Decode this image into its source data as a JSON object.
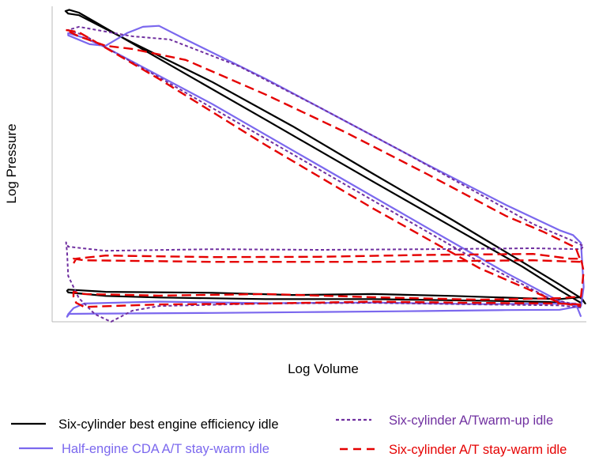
{
  "chart_data": {
    "type": "line",
    "title": "",
    "xlabel": "Log Volume",
    "ylabel": "Log Pressure",
    "xlim": [
      0,
      1
    ],
    "ylim": [
      0,
      1
    ],
    "grid": false,
    "ticks_shown": false,
    "legend_position": "bottom",
    "series": [
      {
        "name": "Six-cylinder best engine efficiency idle",
        "color": "#000000",
        "dash": "solid",
        "points": [
          [
            0.987,
            0.053
          ],
          [
            0.93,
            0.063
          ],
          [
            0.8,
            0.067
          ],
          [
            0.6,
            0.072
          ],
          [
            0.4,
            0.072
          ],
          [
            0.2,
            0.077
          ],
          [
            0.1,
            0.082
          ],
          [
            0.03,
            0.093
          ],
          [
            0.028,
            0.098
          ],
          [
            0.03,
            0.102
          ],
          [
            0.1,
            0.095
          ],
          [
            0.3,
            0.092
          ],
          [
            0.45,
            0.085
          ],
          [
            0.6,
            0.088
          ],
          [
            0.75,
            0.082
          ],
          [
            0.88,
            0.075
          ],
          [
            0.95,
            0.072
          ],
          [
            0.99,
            0.078
          ],
          [
            0.998,
            0.058
          ],
          [
            0.99,
            0.075
          ],
          [
            0.95,
            0.118
          ],
          [
            0.87,
            0.2
          ],
          [
            0.75,
            0.322
          ],
          [
            0.6,
            0.47
          ],
          [
            0.45,
            0.62
          ],
          [
            0.3,
            0.76
          ],
          [
            0.15,
            0.885
          ],
          [
            0.05,
            0.972
          ],
          [
            0.03,
            0.977
          ],
          [
            0.025,
            0.985
          ],
          [
            0.032,
            0.989
          ],
          [
            0.05,
            0.98
          ],
          [
            0.2,
            0.834
          ],
          [
            0.4,
            0.64
          ],
          [
            0.6,
            0.445
          ],
          [
            0.75,
            0.3
          ],
          [
            0.88,
            0.175
          ],
          [
            0.95,
            0.1
          ],
          [
            0.99,
            0.06
          ]
        ]
      },
      {
        "name": "Half-engine CDA A/T stay-warm idle",
        "color": "#7b68ee",
        "dash": "solid",
        "points": [
          [
            0.99,
            0.016
          ],
          [
            0.98,
            0.058
          ],
          [
            0.8,
            0.056
          ],
          [
            0.6,
            0.061
          ],
          [
            0.4,
            0.059
          ],
          [
            0.2,
            0.064
          ],
          [
            0.06,
            0.058
          ],
          [
            0.04,
            0.043
          ],
          [
            0.03,
            0.024
          ],
          [
            0.028,
            0.016
          ],
          [
            0.032,
            0.025
          ],
          [
            0.1,
            0.026
          ],
          [
            0.3,
            0.028
          ],
          [
            0.5,
            0.031
          ],
          [
            0.7,
            0.034
          ],
          [
            0.85,
            0.037
          ],
          [
            0.95,
            0.038
          ],
          [
            0.99,
            0.05
          ],
          [
            0.995,
            0.11
          ],
          [
            0.99,
            0.25
          ],
          [
            0.975,
            0.275
          ],
          [
            0.95,
            0.29
          ],
          [
            0.85,
            0.37
          ],
          [
            0.7,
            0.5
          ],
          [
            0.55,
            0.635
          ],
          [
            0.4,
            0.77
          ],
          [
            0.25,
            0.895
          ],
          [
            0.2,
            0.938
          ],
          [
            0.17,
            0.935
          ],
          [
            0.14,
            0.915
          ],
          [
            0.1,
            0.875
          ],
          [
            0.07,
            0.88
          ],
          [
            0.03,
            0.908
          ],
          [
            0.03,
            0.915
          ],
          [
            0.06,
            0.9
          ],
          [
            0.1,
            0.87
          ],
          [
            0.3,
            0.69
          ],
          [
            0.5,
            0.495
          ],
          [
            0.7,
            0.3
          ],
          [
            0.85,
            0.155
          ],
          [
            0.95,
            0.065
          ],
          [
            0.99,
            0.045
          ]
        ]
      },
      {
        "name": "Six-cylinder A/Twarm-up idle",
        "color": "#7030a0",
        "dash": "dotted",
        "points": [
          [
            0.99,
            0.045
          ],
          [
            0.95,
            0.052
          ],
          [
            0.8,
            0.055
          ],
          [
            0.6,
            0.06
          ],
          [
            0.4,
            0.058
          ],
          [
            0.2,
            0.05
          ],
          [
            0.15,
            0.035
          ],
          [
            0.11,
            0.0
          ],
          [
            0.08,
            0.024
          ],
          [
            0.05,
            0.075
          ],
          [
            0.03,
            0.145
          ],
          [
            0.028,
            0.22
          ],
          [
            0.026,
            0.252
          ],
          [
            0.03,
            0.238
          ],
          [
            0.1,
            0.225
          ],
          [
            0.3,
            0.23
          ],
          [
            0.5,
            0.228
          ],
          [
            0.7,
            0.23
          ],
          [
            0.9,
            0.233
          ],
          [
            0.99,
            0.23
          ],
          [
            0.995,
            0.24
          ],
          [
            0.97,
            0.26
          ],
          [
            0.9,
            0.31
          ],
          [
            0.8,
            0.405
          ],
          [
            0.65,
            0.545
          ],
          [
            0.5,
            0.68
          ],
          [
            0.35,
            0.81
          ],
          [
            0.22,
            0.895
          ],
          [
            0.15,
            0.905
          ],
          [
            0.1,
            0.92
          ],
          [
            0.05,
            0.935
          ],
          [
            0.03,
            0.925
          ],
          [
            0.06,
            0.908
          ],
          [
            0.2,
            0.775
          ],
          [
            0.4,
            0.58
          ],
          [
            0.6,
            0.385
          ],
          [
            0.8,
            0.19
          ],
          [
            0.93,
            0.075
          ],
          [
            0.99,
            0.05
          ]
        ]
      },
      {
        "name": "Six-cylinder A/T stay-warm idle",
        "color": "#e50000",
        "dash": "dashed",
        "points": [
          [
            0.99,
            0.055
          ],
          [
            0.95,
            0.058
          ],
          [
            0.8,
            0.06
          ],
          [
            0.6,
            0.064
          ],
          [
            0.4,
            0.058
          ],
          [
            0.2,
            0.055
          ],
          [
            0.06,
            0.047
          ],
          [
            0.045,
            0.06
          ],
          [
            0.04,
            0.08
          ],
          [
            0.04,
            0.095
          ],
          [
            0.06,
            0.088
          ],
          [
            0.2,
            0.083
          ],
          [
            0.4,
            0.088
          ],
          [
            0.6,
            0.078
          ],
          [
            0.8,
            0.07
          ],
          [
            0.95,
            0.075
          ],
          [
            0.99,
            0.08
          ],
          [
            0.995,
            0.16
          ],
          [
            0.99,
            0.2
          ],
          [
            0.97,
            0.2
          ],
          [
            0.9,
            0.215
          ],
          [
            0.7,
            0.212
          ],
          [
            0.5,
            0.206
          ],
          [
            0.3,
            0.205
          ],
          [
            0.1,
            0.21
          ],
          [
            0.045,
            0.2
          ],
          [
            0.04,
            0.185
          ],
          [
            0.04,
            0.2
          ],
          [
            0.06,
            0.195
          ],
          [
            0.3,
            0.19
          ],
          [
            0.6,
            0.19
          ],
          [
            0.9,
            0.195
          ],
          [
            0.99,
            0.19
          ],
          [
            0.98,
            0.235
          ],
          [
            0.92,
            0.285
          ],
          [
            0.85,
            0.335
          ],
          [
            0.7,
            0.47
          ],
          [
            0.55,
            0.6
          ],
          [
            0.4,
            0.72
          ],
          [
            0.25,
            0.83
          ],
          [
            0.15,
            0.865
          ],
          [
            0.1,
            0.875
          ],
          [
            0.05,
            0.905
          ],
          [
            0.025,
            0.925
          ],
          [
            0.05,
            0.918
          ],
          [
            0.2,
            0.77
          ],
          [
            0.4,
            0.56
          ],
          [
            0.6,
            0.36
          ],
          [
            0.8,
            0.17
          ],
          [
            0.95,
            0.06
          ],
          [
            0.99,
            0.05
          ]
        ]
      }
    ]
  }
}
